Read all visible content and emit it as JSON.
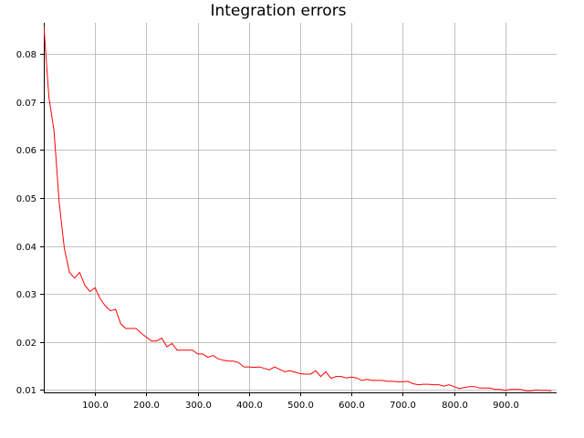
{
  "chart_data": {
    "type": "line",
    "title": "Integration errors",
    "xlabel": "",
    "ylabel": "",
    "xlim": [
      0,
      1000
    ],
    "ylim": [
      0.0095,
      0.0865
    ],
    "grid": true,
    "xticks": [
      100,
      200,
      300,
      400,
      500,
      600,
      700,
      800,
      900
    ],
    "xtick_labels": [
      "100.0",
      "200.0",
      "300.0",
      "400.0",
      "500.0",
      "600.0",
      "700.0",
      "800.0",
      "900.0"
    ],
    "yticks": [
      0.01,
      0.02,
      0.03,
      0.04,
      0.05,
      0.06,
      0.07,
      0.08
    ],
    "ytick_labels": [
      "0.01",
      "0.02",
      "0.03",
      "0.04",
      "0.05",
      "0.06",
      "0.07",
      "0.08"
    ],
    "series": [
      {
        "color": "#ff0000",
        "x": [
          0,
          10,
          20,
          30,
          40,
          50,
          60,
          70,
          80,
          90,
          100,
          110,
          120,
          130,
          140,
          150,
          160,
          170,
          180,
          190,
          200,
          210,
          220,
          230,
          240,
          250,
          260,
          270,
          280,
          290,
          300,
          310,
          320,
          330,
          340,
          350,
          360,
          370,
          380,
          390,
          400,
          410,
          420,
          430,
          440,
          450,
          460,
          470,
          480,
          490,
          500,
          510,
          520,
          530,
          540,
          550,
          560,
          570,
          580,
          590,
          600,
          610,
          620,
          630,
          640,
          650,
          660,
          670,
          680,
          690,
          700,
          710,
          720,
          730,
          740,
          750,
          760,
          770,
          780,
          790,
          800,
          810,
          820,
          830,
          840,
          850,
          860,
          870,
          880,
          890,
          900,
          910,
          920,
          930,
          940,
          950,
          960,
          970,
          980,
          990
        ],
        "y": [
          0.086,
          0.071,
          0.064,
          0.049,
          0.0395,
          0.0345,
          0.0333,
          0.0345,
          0.0318,
          0.0305,
          0.0313,
          0.029,
          0.0275,
          0.0265,
          0.0268,
          0.0238,
          0.0228,
          0.0228,
          0.0228,
          0.0218,
          0.021,
          0.0202,
          0.0202,
          0.0208,
          0.019,
          0.0197,
          0.0183,
          0.0183,
          0.0183,
          0.0183,
          0.0175,
          0.0175,
          0.0168,
          0.0172,
          0.0165,
          0.0162,
          0.016,
          0.016,
          0.0157,
          0.0148,
          0.0148,
          0.0147,
          0.0148,
          0.0145,
          0.0142,
          0.0148,
          0.0143,
          0.0138,
          0.014,
          0.0137,
          0.0134,
          0.0133,
          0.0133,
          0.014,
          0.0128,
          0.0138,
          0.0124,
          0.0128,
          0.0128,
          0.0125,
          0.0127,
          0.0125,
          0.012,
          0.0122,
          0.012,
          0.012,
          0.012,
          0.0118,
          0.0118,
          0.0117,
          0.0117,
          0.0118,
          0.0113,
          0.0111,
          0.0112,
          0.0112,
          0.0111,
          0.0111,
          0.0108,
          0.0111,
          0.0107,
          0.0103,
          0.0105,
          0.0107,
          0.0107,
          0.0104,
          0.0104,
          0.0104,
          0.0101,
          0.0101,
          0.0099,
          0.0101,
          0.0101,
          0.0101,
          0.0098,
          0.0098,
          0.01,
          0.0099,
          0.0099,
          0.0098
        ]
      }
    ]
  }
}
